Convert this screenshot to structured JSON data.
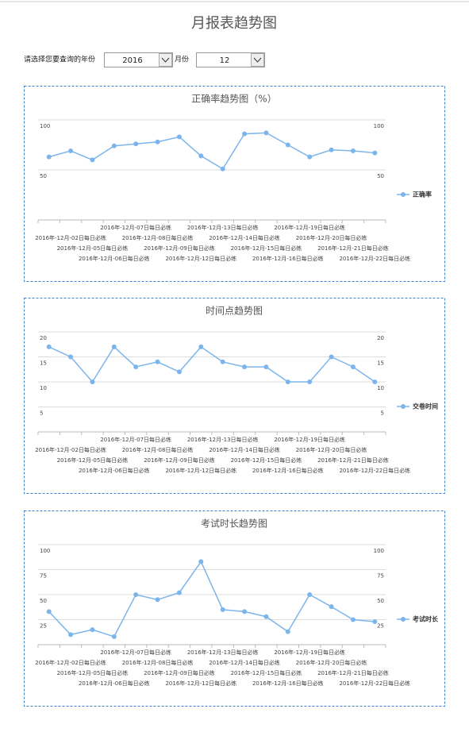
{
  "header": {
    "title": "月报表趋势图"
  },
  "form": {
    "year_label": "请选择您要查询的年份",
    "year": "2016",
    "month_label": "月份",
    "month": "12"
  },
  "chart_data": [
    {
      "type": "line",
      "title": "正确率趋势图（%）",
      "legend_position": "right",
      "grid": true,
      "categories": [
        null,
        "2016年-12月-02日每日必练",
        "2016年-12月-05日每日必练",
        "2016年-12月-06日每日必练",
        "2016年-12月-07日每日必练",
        "2016年-12月-08日每日必练",
        "2016年-12月-09日每日必练",
        "2016年-12月-12日每日必练",
        "2016年-12月-13日每日必练",
        "2016年-12月-14日每日必练",
        "2016年-12月-15日每日必练",
        "2016年-12月-16日每日必练",
        "2016年-12月-19日每日必练",
        "2016年-12月-20日每日必练",
        "2016年-12月-21日每日必练",
        "2016年-12月-22日每日必练"
      ],
      "series": [
        {
          "name": "正确率",
          "color": "#7cb5ec",
          "values": [
            63,
            69,
            60,
            74,
            76,
            78,
            83,
            64,
            51,
            86,
            87,
            75,
            63,
            70,
            69,
            67
          ]
        }
      ],
      "ylim": [
        0,
        100
      ],
      "yticks": [
        50,
        100
      ]
    },
    {
      "type": "line",
      "title": "时间点趋势图",
      "legend_position": "right",
      "grid": true,
      "categories": [
        null,
        "2016年-12月-02日每日必练",
        "2016年-12月-05日每日必练",
        "2016年-12月-06日每日必练",
        "2016年-12月-07日每日必练",
        "2016年-12月-08日每日必练",
        "2016年-12月-09日每日必练",
        "2016年-12月-12日每日必练",
        "2016年-12月-13日每日必练",
        "2016年-12月-14日每日必练",
        "2016年-12月-15日每日必练",
        "2016年-12月-16日每日必练",
        "2016年-12月-19日每日必练",
        "2016年-12月-20日每日必练",
        "2016年-12月-21日每日必练",
        "2016年-12月-22日每日必练"
      ],
      "series": [
        {
          "name": "交卷时间",
          "color": "#7cb5ec",
          "values": [
            17,
            15,
            10,
            17,
            13,
            14,
            12,
            17,
            14,
            13,
            13,
            10,
            10,
            15,
            13,
            10
          ]
        }
      ],
      "ylim": [
        0,
        20
      ],
      "yticks": [
        5,
        10,
        15,
        20
      ]
    },
    {
      "type": "line",
      "title": "考试时长趋势图",
      "legend_position": "right",
      "grid": true,
      "categories": [
        null,
        "2016年-12月-02日每日必练",
        "2016年-12月-05日每日必练",
        "2016年-12月-06日每日必练",
        "2016年-12月-07日每日必练",
        "2016年-12月-08日每日必练",
        "2016年-12月-09日每日必练",
        "2016年-12月-12日每日必练",
        "2016年-12月-13日每日必练",
        "2016年-12月-14日每日必练",
        "2016年-12月-15日每日必练",
        "2016年-12月-16日每日必练",
        "2016年-12月-19日每日必练",
        "2016年-12月-20日每日必练",
        "2016年-12月-21日每日必练",
        "2016年-12月-22日每日必练"
      ],
      "series": [
        {
          "name": "考试时长",
          "color": "#7cb5ec",
          "values": [
            33,
            10,
            15,
            8,
            50,
            45,
            52,
            83,
            35,
            33,
            28,
            13,
            50,
            38,
            25,
            23
          ]
        }
      ],
      "ylim": [
        0,
        100
      ],
      "yticks": [
        25,
        50,
        75,
        100
      ]
    }
  ]
}
